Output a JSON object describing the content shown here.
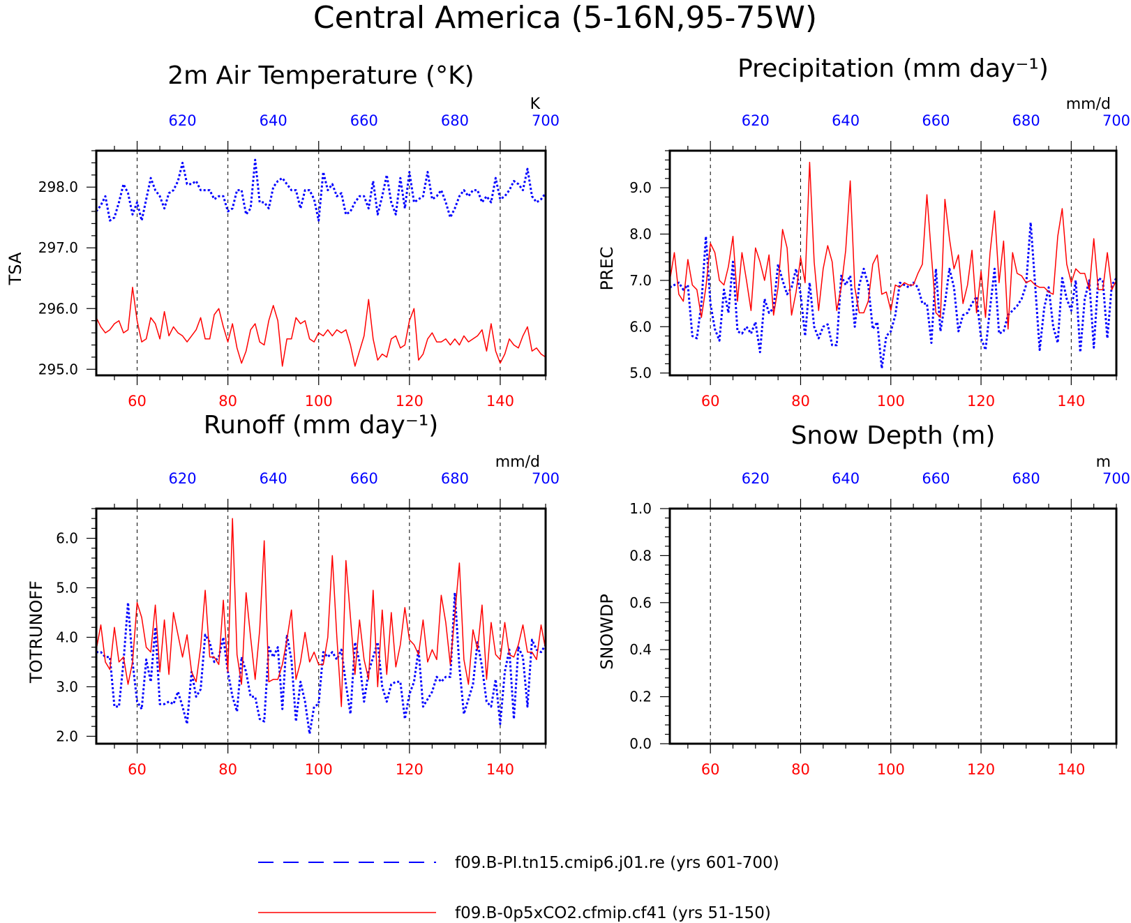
{
  "title": "Central America (5-16N,95-75W)",
  "colors": {
    "exp1": "#0000ff",
    "exp2": "#ff0000",
    "axes": "#000000"
  },
  "legend": [
    {
      "label": "f09.B-PI.tn15.cmip6.j01.re (yrs 601-700)",
      "color": "#0000ff",
      "style": "dashed"
    },
    {
      "label": "f09.B-0p5xCO2.cfmip.cf41 (yrs 51-150)",
      "color": "#ff0000",
      "style": "solid"
    }
  ],
  "chart_data": [
    {
      "type": "line",
      "title": "2m Air Temperature (°K)",
      "ylabel": "TSA",
      "unit": "K",
      "ylim": [
        294.9,
        298.6
      ],
      "yticks": [
        "295.0",
        "296.0",
        "297.0",
        "298.0"
      ],
      "xlim_bottom": [
        51,
        150
      ],
      "xticks_bottom": [
        60,
        80,
        100,
        120,
        140
      ],
      "xticks_top": [
        620,
        640,
        660,
        680,
        700
      ],
      "grid": "vertical dashed",
      "series": [
        {
          "name": "f09.B-PI.tn15.cmip6.j01.re (yrs 601-700)",
          "color": "#0000ff",
          "style": "dotted",
          "x_start": 601,
          "values": [
            297.6,
            297.7,
            297.85,
            297.45,
            297.5,
            297.75,
            298.05,
            297.9,
            297.55,
            297.75,
            297.45,
            297.8,
            298.15,
            297.95,
            297.85,
            297.65,
            297.9,
            297.95,
            298.1,
            298.4,
            298.05,
            298.05,
            298.1,
            297.95,
            297.95,
            297.95,
            297.8,
            297.85,
            297.85,
            297.6,
            297.65,
            297.95,
            297.95,
            297.55,
            297.65,
            298.45,
            297.75,
            297.75,
            297.65,
            298.0,
            298.1,
            298.15,
            298.05,
            297.95,
            297.95,
            297.65,
            297.95,
            297.95,
            297.8,
            297.45,
            298.25,
            297.95,
            298.05,
            297.85,
            297.9,
            297.55,
            297.6,
            297.75,
            297.85,
            297.85,
            297.65,
            298.1,
            297.55,
            297.85,
            298.2,
            297.75,
            297.55,
            298.15,
            297.65,
            298.25,
            297.75,
            297.8,
            297.85,
            298.25,
            297.8,
            297.85,
            297.95,
            297.75,
            297.5,
            297.65,
            297.85,
            297.95,
            297.85,
            297.95,
            297.95,
            297.75,
            297.85,
            297.75,
            298.15,
            297.8,
            297.85,
            297.95,
            298.1,
            298.05,
            297.95,
            298.3,
            297.85,
            297.75,
            297.8,
            297.9
          ],
          "dash": "4,4"
        },
        {
          "name": "f09.B-0p5xCO2.cfmip.cf41 (yrs 51-150)",
          "color": "#ff0000",
          "style": "solid",
          "x_start": 51,
          "values": [
            295.85,
            295.7,
            295.6,
            295.65,
            295.75,
            295.8,
            295.6,
            295.65,
            296.35,
            295.8,
            295.45,
            295.5,
            295.85,
            295.75,
            295.5,
            295.95,
            295.55,
            295.7,
            295.6,
            295.55,
            295.45,
            295.55,
            295.65,
            295.85,
            295.5,
            295.5,
            295.9,
            296.0,
            295.7,
            295.45,
            295.75,
            295.35,
            295.1,
            295.3,
            295.65,
            295.75,
            295.45,
            295.4,
            295.8,
            296.05,
            295.8,
            295.05,
            295.5,
            295.5,
            295.85,
            295.75,
            295.8,
            295.5,
            295.45,
            295.6,
            295.55,
            295.65,
            295.55,
            295.65,
            295.6,
            295.65,
            295.4,
            295.05,
            295.3,
            295.55,
            296.15,
            295.5,
            295.15,
            295.25,
            295.2,
            295.5,
            295.55,
            295.35,
            295.4,
            295.8,
            296.0,
            295.15,
            295.25,
            295.5,
            295.6,
            295.45,
            295.45,
            295.5,
            295.4,
            295.5,
            295.4,
            295.55,
            295.45,
            295.5,
            295.55,
            295.65,
            295.3,
            295.75,
            295.3,
            295.1,
            295.25,
            295.5,
            295.4,
            295.35,
            295.55,
            295.7,
            295.3,
            295.35,
            295.25,
            295.2
          ]
        }
      ]
    },
    {
      "type": "line",
      "title": "Precipitation (mm day⁻¹)",
      "ylabel": "PREC",
      "unit": "mm/d",
      "ylim": [
        4.95,
        9.8
      ],
      "yticks": [
        "5.0",
        "6.0",
        "7.0",
        "8.0",
        "9.0"
      ],
      "xlim_bottom": [
        51,
        150
      ],
      "xticks_bottom": [
        60,
        80,
        100,
        120,
        140
      ],
      "xticks_top": [
        620,
        640,
        660,
        680,
        700
      ],
      "grid": "vertical dashed",
      "series": [
        {
          "name": "f09.B-PI.tn15.cmip6.j01.re (yrs 601-700)",
          "color": "#0000ff",
          "style": "dotted",
          "x_start": 601,
          "values": [
            6.85,
            6.9,
            6.95,
            6.8,
            6.9,
            5.8,
            5.75,
            6.5,
            7.95,
            6.5,
            5.95,
            5.7,
            6.8,
            6.3,
            7.4,
            5.9,
            5.85,
            6.0,
            5.85,
            6.1,
            5.45,
            6.6,
            6.3,
            6.4,
            7.35,
            7.0,
            6.7,
            6.85,
            7.25,
            6.7,
            5.8,
            6.95,
            6.0,
            5.75,
            6.0,
            6.05,
            5.6,
            5.6,
            7.1,
            6.9,
            7.1,
            6.0,
            6.9,
            7.25,
            6.9,
            5.95,
            6.1,
            5.1,
            5.8,
            5.9,
            6.25,
            6.95,
            6.9,
            6.85,
            6.95,
            6.85,
            6.5,
            6.5,
            5.65,
            7.25,
            5.9,
            6.5,
            7.25,
            6.85,
            5.9,
            6.25,
            6.3,
            6.5,
            6.65,
            5.75,
            5.5,
            6.4,
            7.25,
            5.85,
            5.9,
            6.25,
            6.35,
            6.45,
            6.6,
            6.9,
            8.25,
            6.9,
            5.5,
            6.4,
            6.85,
            6.0,
            5.65,
            7.05,
            6.6,
            6.35,
            7.0,
            5.45,
            6.6,
            7.0,
            5.55,
            7.05,
            7.0,
            5.75,
            6.9,
            7.05
          ]
        },
        {
          "name": "f09.B-0p5xCO2.cfmip.cf41 (yrs 51-150)",
          "color": "#ff0000",
          "style": "solid",
          "x_start": 51,
          "values": [
            7.0,
            7.6,
            6.7,
            6.55,
            7.45,
            6.9,
            6.8,
            6.2,
            6.85,
            7.8,
            7.6,
            7.0,
            6.9,
            7.3,
            7.95,
            6.55,
            7.6,
            7.0,
            6.35,
            7.7,
            7.4,
            7.0,
            7.55,
            6.25,
            6.85,
            8.1,
            7.7,
            6.25,
            6.75,
            7.5,
            6.95,
            9.55,
            7.4,
            6.35,
            7.25,
            7.75,
            7.4,
            6.35,
            6.85,
            7.65,
            9.15,
            6.85,
            6.3,
            6.3,
            6.55,
            7.35,
            7.55,
            6.7,
            6.75,
            6.35,
            6.9,
            6.85,
            6.95,
            6.9,
            6.9,
            7.15,
            7.35,
            8.85,
            7.55,
            6.3,
            6.2,
            8.75,
            7.9,
            7.25,
            7.55,
            6.5,
            6.9,
            7.65,
            6.3,
            7.2,
            6.2,
            7.6,
            8.5,
            6.95,
            7.85,
            5.95,
            7.6,
            7.15,
            7.1,
            6.95,
            7.0,
            6.9,
            6.85,
            6.85,
            6.75,
            6.7,
            7.95,
            8.55,
            7.35,
            6.95,
            7.25,
            7.15,
            7.15,
            6.8,
            7.9,
            6.8,
            6.8,
            7.6,
            6.8,
            7.0
          ]
        }
      ]
    },
    {
      "type": "line",
      "title": "Runoff (mm day⁻¹)",
      "ylabel": "TOTRUNOFF",
      "unit": "mm/d",
      "ylim": [
        1.85,
        6.6
      ],
      "yticks": [
        "2.0",
        "3.0",
        "4.0",
        "5.0",
        "6.0"
      ],
      "xlim_bottom": [
        51,
        150
      ],
      "xticks_bottom": [
        60,
        80,
        100,
        120,
        140
      ],
      "xticks_top": [
        620,
        640,
        660,
        680,
        700
      ],
      "grid": "vertical dashed",
      "series": [
        {
          "name": "f09.B-PI.tn15.cmip6.j01.re (yrs 601-700)",
          "color": "#0000ff",
          "style": "dotted",
          "x_start": 601,
          "values": [
            3.7,
            3.7,
            3.6,
            3.6,
            2.6,
            2.6,
            3.5,
            4.7,
            3.5,
            2.7,
            2.55,
            3.55,
            3.1,
            4.2,
            2.65,
            2.65,
            2.7,
            2.65,
            2.9,
            2.6,
            2.25,
            3.3,
            2.8,
            2.95,
            4.05,
            3.9,
            3.5,
            3.6,
            4.0,
            3.3,
            2.8,
            2.5,
            3.6,
            3.3,
            2.8,
            2.8,
            2.35,
            2.3,
            3.8,
            3.6,
            3.8,
            2.55,
            4.05,
            3.55,
            2.3,
            3.1,
            2.7,
            2.05,
            2.6,
            2.65,
            3.7,
            3.6,
            3.7,
            3.55,
            3.75,
            3.05,
            2.45,
            3.9,
            3.5,
            2.7,
            3.3,
            3.6,
            3.9,
            3.0,
            2.7,
            3.05,
            3.1,
            3.1,
            2.35,
            2.85,
            3.1,
            3.75,
            2.6,
            2.75,
            2.9,
            3.2,
            3.1,
            3.2,
            3.2,
            4.9,
            3.4,
            2.45,
            2.75,
            3.05,
            3.9,
            3.4,
            2.7,
            2.6,
            3.15,
            2.25,
            3.3,
            3.75,
            2.35,
            3.8,
            3.6,
            2.6,
            3.95,
            3.75,
            3.7,
            3.85
          ],
          "dash": "4,4"
        },
        {
          "name": "f09.B-0p5xCO2.cfmip.cf41 (yrs 51-150)",
          "color": "#ff0000",
          "style": "solid",
          "x_start": 51,
          "values": [
            3.75,
            4.25,
            3.5,
            3.35,
            4.2,
            3.5,
            3.6,
            3.05,
            3.5,
            4.7,
            4.4,
            3.8,
            3.7,
            4.65,
            3.3,
            4.35,
            3.25,
            4.5,
            4.05,
            3.6,
            4.05,
            3.3,
            3.1,
            3.8,
            4.95,
            3.6,
            3.6,
            3.45,
            4.75,
            3.3,
            6.4,
            3.65,
            3.05,
            4.9,
            4.0,
            3.15,
            4.15,
            5.95,
            3.1,
            3.15,
            3.15,
            3.45,
            3.95,
            4.55,
            3.15,
            3.5,
            4.1,
            3.5,
            3.7,
            3.45,
            3.45,
            4.0,
            5.65,
            4.0,
            2.6,
            5.55,
            4.4,
            3.25,
            4.35,
            3.55,
            3.15,
            4.95,
            3.0,
            4.55,
            3.25,
            4.5,
            3.4,
            3.85,
            4.6,
            3.95,
            3.85,
            3.65,
            4.35,
            3.5,
            3.75,
            3.55,
            4.85,
            4.3,
            3.45,
            4.45,
            5.5,
            3.55,
            3.05,
            4.15,
            3.75,
            4.65,
            3.15,
            4.3,
            3.65,
            3.55,
            4.3,
            3.65,
            3.6,
            3.85,
            4.25,
            3.7,
            3.7,
            3.55,
            4.25,
            3.75
          ]
        }
      ]
    },
    {
      "type": "line",
      "title": "Snow Depth (m)",
      "ylabel": "SNOWDP",
      "unit": "m",
      "ylim": [
        0.0,
        1.0
      ],
      "yticks": [
        "0.0",
        "0.2",
        "0.4",
        "0.6",
        "0.8",
        "1.0"
      ],
      "xlim_bottom": [
        51,
        150
      ],
      "xticks_bottom": [
        60,
        80,
        100,
        120,
        140
      ],
      "xticks_top": [
        620,
        640,
        660,
        680,
        700
      ],
      "grid": "vertical dashed",
      "series": []
    }
  ]
}
